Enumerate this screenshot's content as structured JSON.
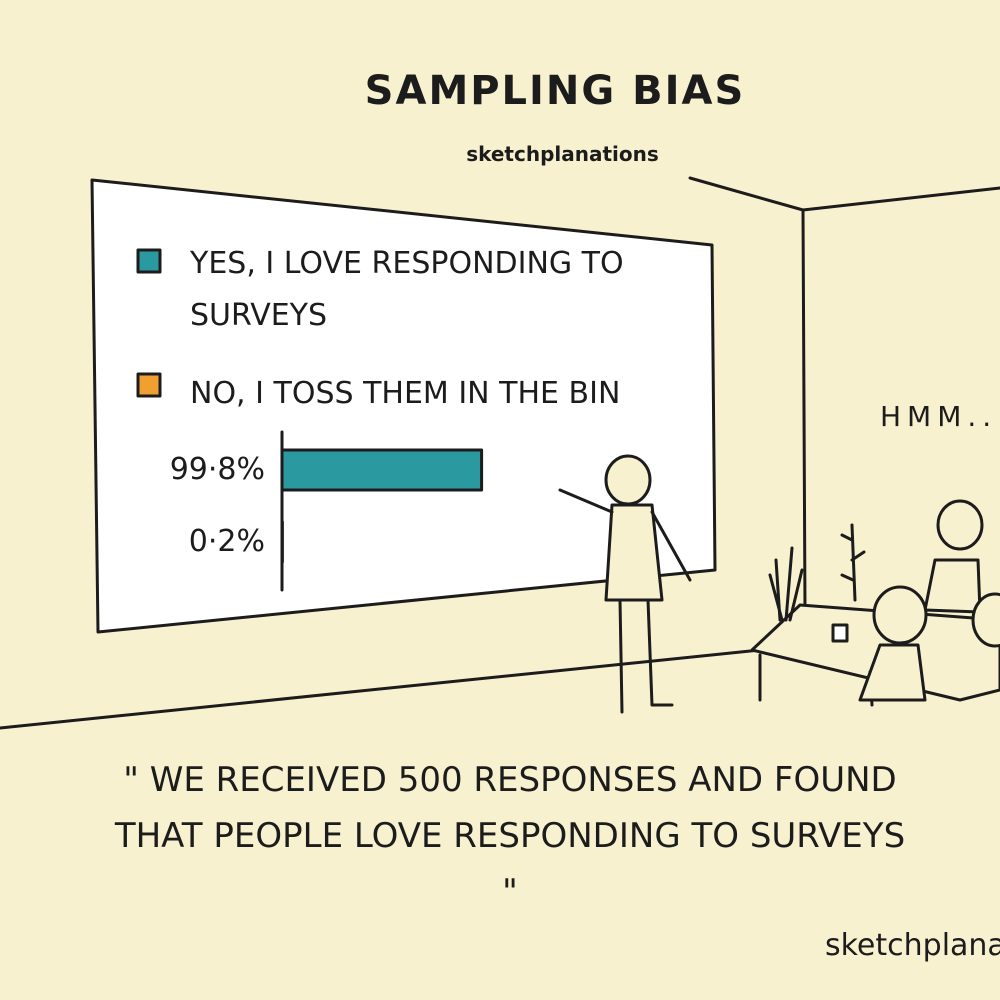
{
  "title": "SAMPLING BIAS",
  "brand": "sketchplanations",
  "chart_data": {
    "type": "bar",
    "orientation": "horizontal",
    "categories": [
      "YES, I LOVE RESPONDING TO SURVEYS",
      "NO, I TOSS THEM IN THE BIN"
    ],
    "values": [
      99.8,
      0.2
    ],
    "value_labels": [
      "99·8%",
      "0·2%"
    ],
    "colors": [
      "#2a9aa0",
      "#f0a030"
    ]
  },
  "speech": "HMM...",
  "caption": "\" WE RECEIVED 500 RESPONSES AND FOUND THAT PEOPLE LOVE RESPONDING TO SURVEYS \"",
  "signature": "sketchplanations"
}
